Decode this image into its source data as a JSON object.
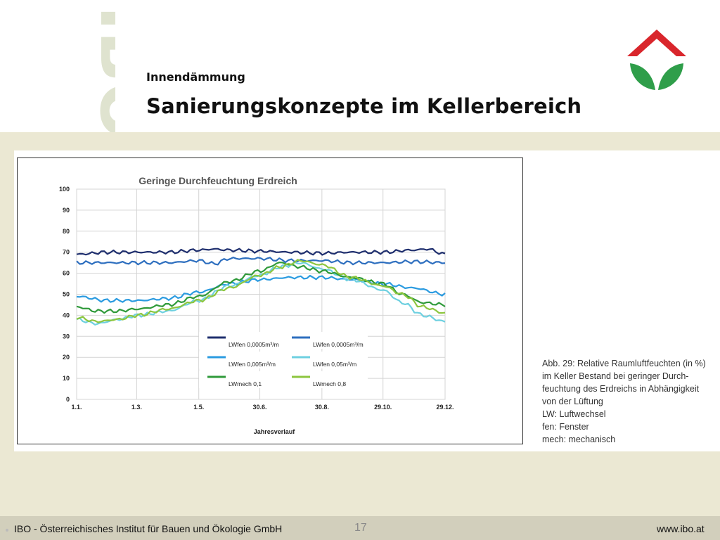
{
  "header": {
    "subtitle": "Innendämmung",
    "title": "Sanierungskonzepte im Kellerbereich",
    "watermark": "IBO"
  },
  "caption": {
    "lines": [
      "Abb. 29: Relative Raumluftfeuchten (in %)",
      "im Keller Bestand bei geringer Durch-",
      "feuchtung des Erdreichs in Abhängigkeit",
      "von der Lüftung",
      "LW: Luftwechsel",
      "fen: Fenster",
      "mech: mechanisch"
    ]
  },
  "footer": {
    "left": "IBO - Österreichisches Institut für Bauen und Ökologie GmbH",
    "page": "17",
    "right": "www.ibo.at"
  },
  "colors": {
    "logo_roof": "#d9262c",
    "logo_leaf": "#2f9e4a",
    "background": "#ebe8d3",
    "footer": "#d2cfbc"
  },
  "chart_data": {
    "type": "line",
    "title": "Geringe Durchfeuchtung Erdreich",
    "xlabel": "Jahresverlauf",
    "ylabel": "",
    "ylim": [
      0,
      100
    ],
    "yticks": [
      0,
      10,
      20,
      30,
      40,
      50,
      60,
      70,
      80,
      90,
      100
    ],
    "xlim": [
      0,
      362
    ],
    "xticks": [
      {
        "label": "1.1.",
        "day": 0
      },
      {
        "label": "1.3.",
        "day": 59
      },
      {
        "label": "1.5.",
        "day": 120
      },
      {
        "label": "30.6.",
        "day": 180
      },
      {
        "label": "30.8.",
        "day": 241
      },
      {
        "label": "29.10.",
        "day": 301
      },
      {
        "label": "29.12.",
        "day": 362
      }
    ],
    "grid": true,
    "legend_position": "bottom-center",
    "series": [
      {
        "name": "LWfen 0,0005m³/m",
        "color": "#1f2f6e",
        "x": [
          0,
          30,
          60,
          90,
          120,
          135,
          150,
          180,
          210,
          241,
          270,
          301,
          330,
          345,
          362
        ],
        "y": [
          69,
          70,
          70,
          70,
          71,
          71.5,
          71,
          70.5,
          70,
          69.5,
          70,
          70,
          71,
          71.5,
          69
        ]
      },
      {
        "name": "LWfen 0,0005m³/m",
        "color": "#2e6fbf",
        "x": [
          0,
          30,
          60,
          90,
          120,
          135,
          150,
          180,
          210,
          241,
          270,
          301,
          330,
          362
        ],
        "y": [
          65,
          65,
          65,
          65,
          66,
          64.5,
          67,
          67,
          66,
          66,
          65,
          65,
          65.5,
          65
        ]
      },
      {
        "name": "LWfen 0,005m³/m",
        "color": "#2b9be0",
        "x": [
          0,
          30,
          60,
          90,
          120,
          150,
          180,
          210,
          241,
          270,
          301,
          330,
          362
        ],
        "y": [
          49,
          47,
          47,
          48,
          51,
          55,
          57,
          58,
          58,
          57,
          55,
          53,
          50
        ]
      },
      {
        "name": "LWfen 0,05m³/m",
        "color": "#6ed0e0",
        "x": [
          0,
          20,
          40,
          60,
          90,
          120,
          150,
          180,
          200,
          220,
          241,
          270,
          301,
          320,
          340,
          362
        ],
        "y": [
          38,
          36,
          38,
          40,
          42,
          47,
          54,
          59,
          63,
          65,
          62,
          57,
          52,
          46,
          40,
          37
        ]
      },
      {
        "name": "LWmech 0,1",
        "color": "#2f9a3a",
        "x": [
          0,
          20,
          40,
          60,
          90,
          120,
          150,
          180,
          200,
          220,
          241,
          270,
          301,
          320,
          340,
          362
        ],
        "y": [
          44,
          42,
          42,
          43,
          45,
          49,
          56,
          61,
          65,
          63,
          61,
          58,
          55,
          50,
          46,
          45
        ]
      },
      {
        "name": "LWmech 0,8",
        "color": "#8dc63f",
        "x": [
          0,
          20,
          40,
          60,
          90,
          120,
          150,
          180,
          200,
          220,
          241,
          270,
          301,
          320,
          340,
          362
        ],
        "y": [
          39,
          37,
          38,
          40,
          43,
          47,
          53,
          59,
          63,
          66,
          64,
          58,
          54,
          50,
          44,
          41
        ]
      }
    ]
  }
}
